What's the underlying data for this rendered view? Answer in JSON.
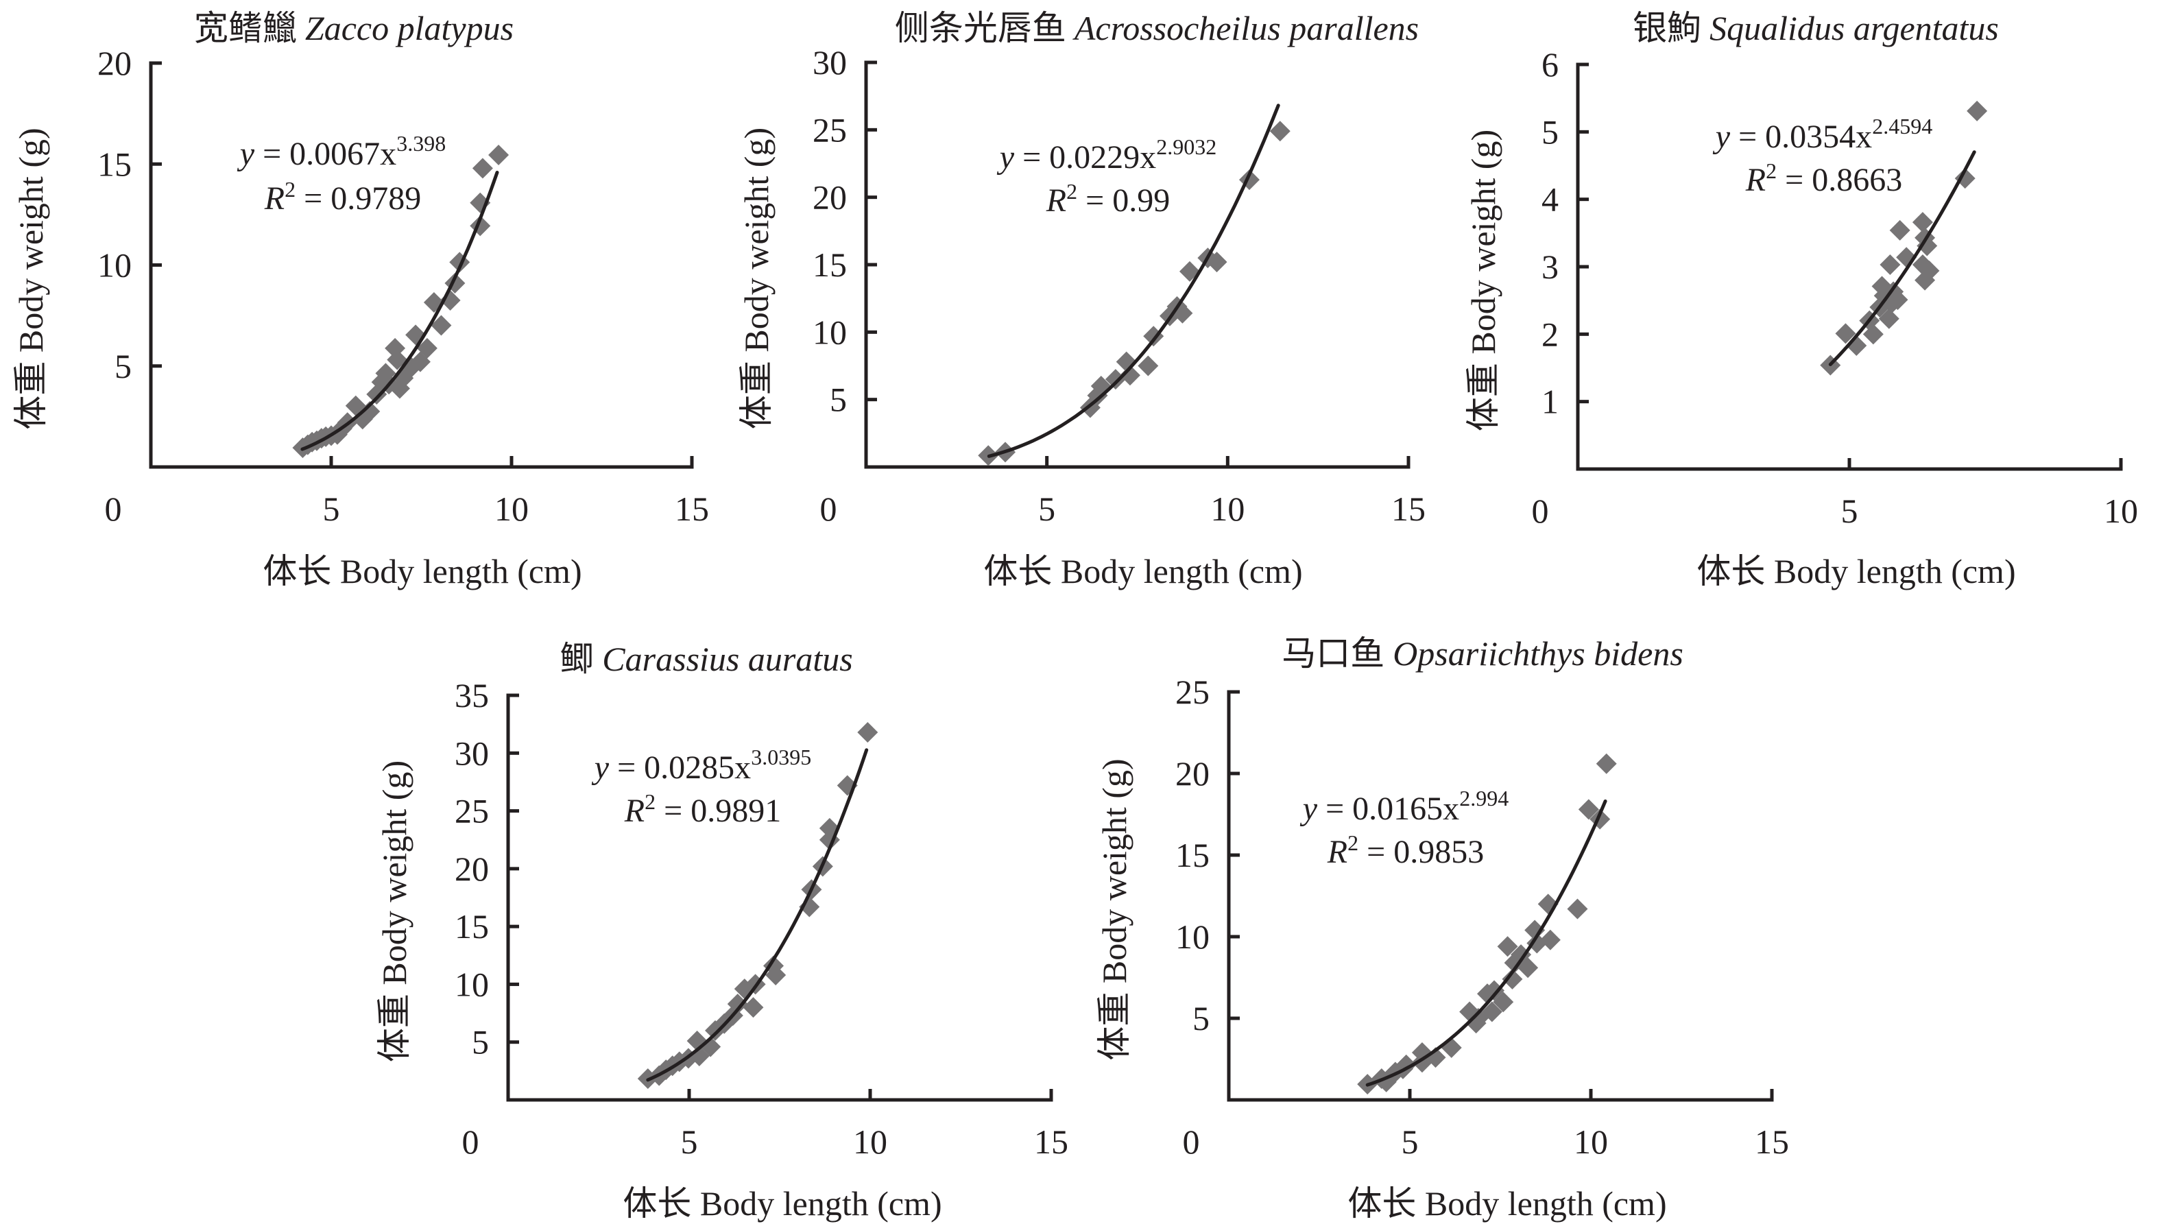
{
  "figure": {
    "x_axis_label": "体长 Body length (cm)",
    "y_axis_label": "体重 Body weight (g)",
    "marker_color": "#767475",
    "line_color": "#231f20"
  },
  "chart_data": [
    {
      "type": "scatter",
      "id": "zacco",
      "title_cn": "宽鳍鱲",
      "title_latin": "Zacco platypus",
      "xlabel": "体长 Body length (cm)",
      "ylabel": "体重 Body weight (g)",
      "xlim": [
        0,
        15
      ],
      "ylim": [
        0,
        20
      ],
      "x_ticks": [
        "0",
        "5",
        "10",
        "15"
      ],
      "x_tick_values": [
        0,
        5,
        10,
        15
      ],
      "y_ticks": [
        "5",
        "10",
        "15",
        "20"
      ],
      "y_tick_values": [
        5,
        10,
        15,
        20
      ],
      "fit": {
        "type": "power",
        "a": 0.0067,
        "b": 3.398,
        "x_range": [
          4.2,
          9.6
        ]
      },
      "equation": {
        "prefix": "y",
        "body": " = 0.0067x",
        "exp": "3.398"
      },
      "r2": {
        "label": "R",
        "sup": "2",
        "value": " = 0.9789"
      },
      "grid": false,
      "legend": "none",
      "points": [
        [
          4.21,
          0.95
        ],
        [
          4.35,
          1.1
        ],
        [
          4.47,
          1.23
        ],
        [
          4.6,
          1.3
        ],
        [
          4.73,
          1.42
        ],
        [
          4.85,
          1.5
        ],
        [
          5.0,
          1.55
        ],
        [
          5.17,
          1.61
        ],
        [
          5.3,
          1.9
        ],
        [
          5.45,
          2.2
        ],
        [
          5.68,
          3.03
        ],
        [
          5.87,
          2.37
        ],
        [
          6.07,
          2.75
        ],
        [
          6.26,
          3.6
        ],
        [
          6.4,
          4.2
        ],
        [
          6.51,
          4.64
        ],
        [
          6.6,
          4.1
        ],
        [
          6.77,
          5.88
        ],
        [
          6.83,
          5.31
        ],
        [
          6.9,
          3.89
        ],
        [
          7.0,
          4.4
        ],
        [
          7.22,
          4.93
        ],
        [
          7.34,
          6.54
        ],
        [
          7.47,
          5.21
        ],
        [
          7.66,
          5.88
        ],
        [
          7.85,
          8.15
        ],
        [
          8.05,
          7.01
        ],
        [
          8.3,
          8.25
        ],
        [
          8.43,
          9.1
        ],
        [
          8.56,
          10.14
        ],
        [
          9.13,
          11.94
        ],
        [
          9.13,
          13.08
        ],
        [
          9.2,
          14.79
        ],
        [
          9.64,
          15.45
        ]
      ]
    },
    {
      "type": "scatter",
      "id": "acrossocheilus",
      "title_cn": "侧条光唇鱼",
      "title_latin": "Acrossocheilus parallens",
      "xlabel": "体长 Body length (cm)",
      "ylabel": "体重 Body weight (g)",
      "xlim": [
        0,
        15
      ],
      "ylim": [
        0,
        30
      ],
      "x_ticks": [
        "0",
        "5",
        "10",
        "15"
      ],
      "x_tick_values": [
        0,
        5,
        10,
        15
      ],
      "y_ticks": [
        "5",
        "10",
        "15",
        "20",
        "25",
        "30"
      ],
      "y_tick_values": [
        5,
        10,
        15,
        20,
        25,
        30
      ],
      "fit": {
        "type": "power",
        "a": 0.0229,
        "b": 2.9032,
        "x_range": [
          3.4,
          11.4
        ]
      },
      "equation": {
        "prefix": "y",
        "body": " = 0.0229x",
        "exp": "2.9032"
      },
      "r2": {
        "label": "R",
        "sup": "2",
        "value": " = 0.99"
      },
      "grid": false,
      "legend": "none",
      "points": [
        [
          3.38,
          0.85
        ],
        [
          3.85,
          1.1
        ],
        [
          6.2,
          4.4
        ],
        [
          6.4,
          5.3
        ],
        [
          6.5,
          6.0
        ],
        [
          6.9,
          6.5
        ],
        [
          7.2,
          7.8
        ],
        [
          7.3,
          6.8
        ],
        [
          7.8,
          7.5
        ],
        [
          7.95,
          9.7
        ],
        [
          8.4,
          11.2
        ],
        [
          8.6,
          11.9
        ],
        [
          8.75,
          11.4
        ],
        [
          8.95,
          14.5
        ],
        [
          9.45,
          15.5
        ],
        [
          9.7,
          15.2
        ],
        [
          10.6,
          21.3
        ],
        [
          11.45,
          24.9
        ]
      ]
    },
    {
      "type": "scatter",
      "id": "squalidus",
      "title_cn": "银鮈",
      "title_latin": "Squalidus argentatus",
      "xlabel": "体长 Body length (cm)",
      "ylabel": "体重 Body weight (g)",
      "xlim": [
        0,
        10
      ],
      "ylim": [
        0,
        6
      ],
      "x_ticks": [
        "0",
        "5",
        "10"
      ],
      "x_tick_values": [
        0,
        5,
        10
      ],
      "y_ticks": [
        "1",
        "2",
        "3",
        "4",
        "5",
        "6"
      ],
      "y_tick_values": [
        1,
        2,
        3,
        4,
        5,
        6
      ],
      "fit": {
        "type": "power",
        "a": 0.0354,
        "b": 2.4594,
        "x_range": [
          4.65,
          7.3
        ]
      },
      "equation": {
        "prefix": "y",
        "body": " = 0.0354x",
        "exp": "2.4594"
      },
      "r2": {
        "label": "R",
        "sup": "2",
        "value": " = 0.8663"
      },
      "grid": false,
      "legend": "none",
      "points": [
        [
          4.65,
          1.54
        ],
        [
          4.93,
          2.01
        ],
        [
          5.13,
          1.83
        ],
        [
          5.37,
          2.2
        ],
        [
          5.44,
          2.0
        ],
        [
          5.56,
          2.4
        ],
        [
          5.6,
          2.71
        ],
        [
          5.64,
          2.57
        ],
        [
          5.73,
          2.23
        ],
        [
          5.75,
          3.03
        ],
        [
          5.78,
          2.46
        ],
        [
          5.81,
          2.63
        ],
        [
          5.89,
          2.51
        ],
        [
          5.93,
          3.54
        ],
        [
          6.05,
          3.14
        ],
        [
          6.35,
          3.66
        ],
        [
          6.39,
          3.43
        ],
        [
          6.43,
          3.31
        ],
        [
          6.35,
          3.03
        ],
        [
          6.39,
          2.8
        ],
        [
          6.47,
          2.94
        ],
        [
          7.13,
          4.31
        ],
        [
          7.35,
          5.31
        ]
      ]
    },
    {
      "type": "scatter",
      "id": "carassius",
      "title_cn": "鲫",
      "title_latin": "Carassius auratus",
      "xlabel": "体长 Body length (cm)",
      "ylabel": "体重 Body weight (g)",
      "xlim": [
        0,
        15
      ],
      "ylim": [
        0,
        35
      ],
      "x_ticks": [
        "0",
        "5",
        "10",
        "15"
      ],
      "x_tick_values": [
        0,
        5,
        10,
        15
      ],
      "y_ticks": [
        "5",
        "10",
        "15",
        "20",
        "25",
        "30",
        "35"
      ],
      "y_tick_values": [
        5,
        10,
        15,
        20,
        25,
        30,
        35
      ],
      "fit": {
        "type": "power",
        "a": 0.0285,
        "b": 3.0395,
        "x_range": [
          3.86,
          9.9
        ]
      },
      "equation": {
        "prefix": "y",
        "body": " = 0.0285x",
        "exp": "3.0395"
      },
      "r2": {
        "label": "R",
        "sup": "2",
        "value": " = 0.9891"
      },
      "grid": false,
      "legend": "none",
      "points": [
        [
          3.86,
          1.84
        ],
        [
          4.17,
          2.1
        ],
        [
          4.36,
          2.6
        ],
        [
          4.54,
          2.95
        ],
        [
          4.73,
          3.3
        ],
        [
          4.98,
          3.6
        ],
        [
          5.22,
          5.1
        ],
        [
          5.28,
          3.8
        ],
        [
          5.59,
          4.6
        ],
        [
          5.72,
          6.0
        ],
        [
          5.97,
          6.6
        ],
        [
          6.21,
          7.3
        ],
        [
          6.34,
          8.3
        ],
        [
          6.53,
          9.6
        ],
        [
          6.77,
          8.0
        ],
        [
          6.83,
          10.0
        ],
        [
          7.33,
          11.6
        ],
        [
          7.39,
          10.8
        ],
        [
          8.32,
          16.7
        ],
        [
          8.38,
          18.2
        ],
        [
          8.69,
          20.2
        ],
        [
          8.88,
          22.5
        ],
        [
          8.88,
          23.5
        ],
        [
          9.37,
          27.2
        ],
        [
          9.93,
          31.8
        ]
      ]
    },
    {
      "type": "scatter",
      "id": "opsariichthys",
      "title_cn": "马口鱼",
      "title_latin": "Opsariichthys bidens",
      "xlabel": "体长 Body length (cm)",
      "ylabel": "体重 Body weight (g)",
      "xlim": [
        0,
        15
      ],
      "ylim": [
        0,
        25
      ],
      "x_ticks": [
        "0",
        "5",
        "10",
        "15"
      ],
      "x_tick_values": [
        0,
        5,
        10,
        15
      ],
      "y_ticks": [
        "5",
        "10",
        "15",
        "20",
        "25"
      ],
      "y_tick_values": [
        5,
        10,
        15,
        20,
        25
      ],
      "fit": {
        "type": "power",
        "a": 0.0165,
        "b": 2.994,
        "x_range": [
          3.83,
          10.4
        ]
      },
      "equation": {
        "prefix": "y",
        "body": " = 0.0165x",
        "exp": "2.994"
      },
      "r2": {
        "label": "R",
        "sup": "2",
        "value": " = 0.9853"
      },
      "grid": false,
      "legend": "none",
      "points": [
        [
          3.83,
          0.96
        ],
        [
          4.22,
          1.3
        ],
        [
          4.35,
          1.1
        ],
        [
          4.6,
          1.7
        ],
        [
          4.81,
          1.9
        ],
        [
          4.9,
          2.15
        ],
        [
          5.34,
          2.3
        ],
        [
          5.34,
          2.9
        ],
        [
          5.71,
          2.6
        ],
        [
          6.15,
          3.2
        ],
        [
          6.65,
          5.4
        ],
        [
          6.83,
          4.7
        ],
        [
          6.89,
          5.0
        ],
        [
          7.14,
          6.5
        ],
        [
          7.27,
          5.4
        ],
        [
          7.33,
          6.7
        ],
        [
          7.58,
          6.0
        ],
        [
          7.7,
          9.4
        ],
        [
          7.83,
          7.4
        ],
        [
          7.89,
          8.4
        ],
        [
          8.07,
          8.9
        ],
        [
          8.26,
          8.1
        ],
        [
          8.45,
          10.4
        ],
        [
          8.51,
          9.6
        ],
        [
          8.88,
          9.8
        ],
        [
          8.82,
          12.0
        ],
        [
          9.63,
          11.7
        ],
        [
          9.94,
          17.8
        ],
        [
          10.25,
          17.2
        ],
        [
          10.43,
          20.6
        ]
      ]
    }
  ]
}
